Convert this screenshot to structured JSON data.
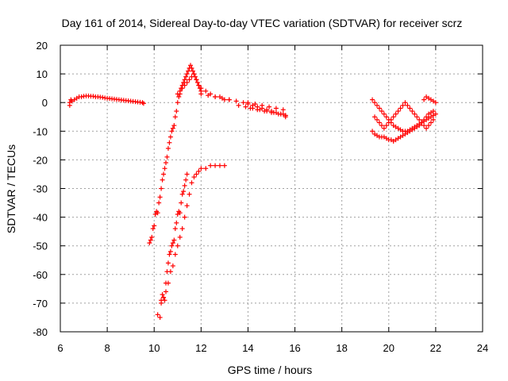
{
  "chart_data": {
    "type": "scatter",
    "title": "Day 161 of 2014, Sidereal Day-to-day VTEC variation (SDTVAR) for receiver scrz",
    "xlabel": "GPS time / hours",
    "ylabel": "SDTVAR / TECUs",
    "xlim": [
      6,
      24
    ],
    "ylim": [
      -80,
      20
    ],
    "xticks": [
      6,
      8,
      10,
      12,
      14,
      16,
      18,
      20,
      22,
      24
    ],
    "yticks": [
      20,
      10,
      0,
      -10,
      -20,
      -30,
      -40,
      -50,
      -60,
      -70,
      -80
    ],
    "grid": true,
    "marker": "+",
    "color": "#ff0000",
    "series": [
      {
        "name": "SDTVAR",
        "x": [
          6.4,
          6.4,
          6.45,
          6.5,
          6.6,
          6.7,
          6.8,
          6.9,
          7.0,
          7.1,
          7.2,
          7.3,
          7.4,
          7.5,
          7.6,
          7.7,
          7.8,
          7.9,
          8.0,
          8.1,
          8.2,
          8.3,
          8.4,
          8.5,
          8.6,
          8.7,
          8.8,
          8.9,
          9.0,
          9.1,
          9.2,
          9.3,
          9.4,
          9.5,
          9.55,
          9.8,
          9.85,
          9.9,
          9.95,
          10.0,
          10.05,
          10.1,
          10.15,
          10.2,
          10.25,
          10.3,
          10.35,
          10.4,
          10.45,
          10.5,
          10.55,
          10.6,
          10.65,
          10.7,
          10.75,
          10.8,
          10.85,
          10.9,
          10.95,
          11.0,
          11.05,
          11.1,
          11.15,
          11.2,
          11.25,
          11.3,
          11.35,
          11.4,
          11.45,
          11.5,
          11.55,
          11.6,
          11.65,
          11.7,
          11.75,
          11.8,
          11.85,
          11.9,
          11.95,
          12.0,
          10.15,
          10.25,
          10.3,
          10.35,
          10.4,
          10.45,
          10.5,
          10.55,
          10.6,
          10.65,
          10.7,
          10.75,
          10.8,
          10.85,
          10.9,
          10.95,
          11.0,
          11.05,
          11.1,
          11.15,
          11.2,
          11.25,
          11.3,
          11.35,
          11.4,
          10.3,
          10.4,
          10.5,
          10.6,
          10.7,
          10.8,
          10.9,
          11.0,
          11.1,
          11.2,
          11.3,
          11.4,
          11.5,
          11.6,
          11.7,
          11.8,
          11.9,
          12.0,
          12.2,
          12.4,
          12.6,
          12.8,
          13.0,
          11.0,
          11.1,
          11.2,
          11.3,
          11.4,
          11.5,
          11.6,
          11.7,
          11.8,
          11.9,
          12.0,
          12.2,
          12.4,
          12.6,
          12.8,
          13.0,
          13.2,
          12.0,
          12.3,
          12.6,
          12.9,
          13.2,
          13.5,
          13.8,
          14.0,
          14.2,
          14.4,
          14.6,
          14.8,
          15.0,
          15.2,
          15.4,
          15.5,
          15.6,
          13.6,
          13.9,
          14.2,
          14.5,
          14.8,
          15.1,
          15.4,
          15.6,
          14.0,
          14.3,
          14.6,
          14.9,
          15.2,
          15.5,
          14.1,
          14.4,
          14.7,
          15.0,
          15.3,
          15.6,
          19.3,
          19.4,
          19.5,
          19.6,
          19.7,
          19.8,
          19.9,
          20.0,
          20.1,
          20.2,
          20.3,
          20.4,
          20.5,
          20.6,
          20.7,
          20.8,
          20.9,
          21.0,
          21.1,
          21.2,
          21.3,
          21.4,
          21.5,
          21.6,
          21.7,
          21.8,
          21.9,
          22.0,
          19.3,
          19.4,
          19.5,
          19.6,
          19.7,
          19.8,
          19.9,
          20.0,
          20.1,
          20.2,
          20.3,
          20.4,
          20.5,
          20.6,
          20.7,
          20.8,
          20.9,
          21.0,
          21.1,
          21.2,
          21.3,
          21.4,
          21.5,
          21.6,
          21.7,
          21.8,
          21.9,
          19.4,
          19.5,
          19.6,
          19.7,
          19.8,
          19.9,
          20.0,
          20.1,
          20.2,
          20.3,
          20.4,
          20.5,
          20.6,
          20.7,
          20.8,
          20.9,
          21.0,
          21.1,
          21.2,
          21.3,
          21.4,
          21.5,
          21.6,
          21.7,
          21.8,
          21.9,
          21.5,
          21.6,
          21.7,
          21.8,
          21.9,
          22.0
        ],
        "y": [
          0,
          -1,
          1,
          0.5,
          1,
          1.5,
          2,
          2,
          2.2,
          2.3,
          2.3,
          2.2,
          2.2,
          2,
          2,
          1.9,
          1.8,
          1.6,
          1.5,
          1.4,
          1.3,
          1.2,
          1.1,
          1,
          0.9,
          0.8,
          0.7,
          0.6,
          0.5,
          0.4,
          0.3,
          0.2,
          0.1,
          0,
          -0.3,
          -49,
          -48,
          -47,
          -44,
          -43,
          -39,
          -38,
          -38.5,
          -35,
          -33,
          -30,
          -27,
          -25,
          -23,
          -21,
          -19,
          -16,
          -14,
          -12,
          -10,
          -9,
          -8,
          -5,
          -3,
          0,
          2,
          3,
          5,
          6,
          7,
          8,
          9,
          10,
          11,
          12,
          13,
          12,
          11,
          10,
          9,
          8,
          7,
          6,
          5,
          4,
          -74,
          -75,
          -70,
          -67,
          -68,
          -69,
          -63,
          -59,
          -56,
          -53,
          -52,
          -50,
          -49,
          -48,
          -44,
          -42,
          -39,
          -38,
          -38.5,
          -35,
          -32,
          -31,
          -29,
          -27,
          -25,
          -69,
          -68,
          -66,
          -63,
          -59,
          -57,
          -53,
          -50,
          -47,
          -44,
          -40,
          -36,
          -32,
          -28,
          -26,
          -25,
          -24,
          -23,
          -23,
          -22,
          -22,
          -22,
          -22,
          3,
          4,
          5,
          6,
          7,
          8,
          9,
          10,
          8,
          6,
          5,
          4,
          3,
          2,
          2,
          1,
          1,
          3,
          2.5,
          2,
          1.5,
          1,
          0.5,
          0,
          -0.5,
          -1,
          -1.5,
          -2,
          -2.5,
          -3,
          -3.5,
          -4,
          -4,
          -4.5,
          -1,
          -1.5,
          -2,
          -2.5,
          -3,
          -3.5,
          -4,
          -4.5,
          0,
          -0.5,
          -1,
          -1.5,
          -2,
          -2.5,
          -2,
          -2.5,
          -3,
          -3.5,
          -4,
          -5,
          1,
          0,
          -1,
          -2,
          -3,
          -4,
          -5,
          -6,
          -7,
          -8,
          -8.5,
          -9,
          -9.5,
          -10,
          -10,
          -10,
          -9.5,
          -9,
          -8.5,
          -8,
          -7.5,
          -7,
          -6.5,
          -6,
          -5.5,
          -5,
          -4.5,
          -4,
          -10,
          -11,
          -11.5,
          -12,
          -12,
          -12,
          -12.5,
          -13,
          -13,
          -13.5,
          -13,
          -12.5,
          -12,
          -11.5,
          -11,
          -10.5,
          -10,
          -9.5,
          -9,
          -8.5,
          -8,
          -7,
          -6,
          -5,
          -4,
          -3.5,
          -3,
          -5,
          -6,
          -7,
          -8,
          -9,
          -8,
          -7,
          -6,
          -5,
          -4,
          -3,
          -2,
          -1,
          0,
          -1,
          -2,
          -3,
          -4,
          -5,
          -6,
          -7,
          -8,
          -9,
          -8,
          -7,
          -6,
          1,
          2,
          1.5,
          1,
          0.5,
          0
        ]
      }
    ]
  }
}
